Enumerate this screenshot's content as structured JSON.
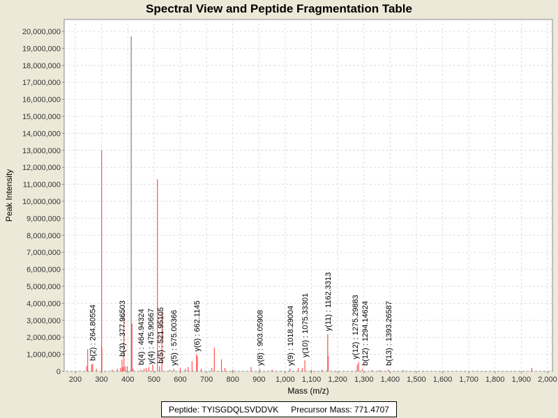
{
  "chart_data": {
    "type": "bar",
    "title": "Spectral View and Peptide Fragmentation Table",
    "xlabel": "Mass (m/z)",
    "ylabel": "Peak Intensity",
    "xlim": [
      150,
      2020
    ],
    "ylim": [
      0,
      20500000
    ],
    "xticks": [
      200,
      300,
      400,
      500,
      600,
      700,
      800,
      900,
      1000,
      1100,
      1200,
      1300,
      1400,
      1500,
      1600,
      1700,
      1800,
      1900,
      2000
    ],
    "yticks": [
      0,
      1000000,
      2000000,
      3000000,
      4000000,
      5000000,
      6000000,
      7000000,
      8000000,
      9000000,
      10000000,
      11000000,
      12000000,
      13000000,
      14000000,
      15000000,
      16000000,
      17000000,
      18000000,
      19000000,
      20000000
    ],
    "grid": true,
    "peaks": [
      [
        243,
        300000
      ],
      [
        247,
        1300000
      ],
      [
        262,
        400000
      ],
      [
        266,
        450000
      ],
      [
        280,
        150000
      ],
      [
        300,
        13000000
      ],
      [
        301,
        1400000
      ],
      [
        340,
        100000
      ],
      [
        360,
        150000
      ],
      [
        372,
        200000
      ],
      [
        378,
        700000
      ],
      [
        381,
        250000
      ],
      [
        385,
        3600000
      ],
      [
        390,
        300000
      ],
      [
        398,
        300000
      ],
      [
        416,
        2800000
      ],
      [
        420,
        150000
      ],
      [
        450,
        100000
      ],
      [
        462,
        150000
      ],
      [
        470,
        200000
      ],
      [
        480,
        250000
      ],
      [
        495,
        400000
      ],
      [
        513,
        11300000
      ],
      [
        521,
        300000
      ],
      [
        530,
        3600000
      ],
      [
        560,
        100000
      ],
      [
        575,
        150000
      ],
      [
        600,
        200000
      ],
      [
        620,
        150000
      ],
      [
        630,
        250000
      ],
      [
        645,
        600000
      ],
      [
        662,
        1000000
      ],
      [
        665,
        900000
      ],
      [
        680,
        150000
      ],
      [
        720,
        200000
      ],
      [
        730,
        1400000
      ],
      [
        757,
        700000
      ],
      [
        770,
        200000
      ],
      [
        800,
        100000
      ],
      [
        870,
        250000
      ],
      [
        903,
        150000
      ],
      [
        950,
        100000
      ],
      [
        1018,
        150000
      ],
      [
        1050,
        200000
      ],
      [
        1065,
        200000
      ],
      [
        1075,
        650000
      ],
      [
        1100,
        100000
      ],
      [
        1140,
        100000
      ],
      [
        1162,
        2200000
      ],
      [
        1164,
        900000
      ],
      [
        1275,
        400000
      ],
      [
        1280,
        550000
      ],
      [
        1294,
        150000
      ],
      [
        1330,
        80000
      ],
      [
        1360,
        80000
      ],
      [
        1393,
        100000
      ],
      [
        1450,
        80000
      ],
      [
        1940,
        200000
      ]
    ],
    "precursor_peak": [
      413,
      19700000
    ],
    "annotations": [
      {
        "mass": 264.80554,
        "label": "b(2) : 264.80554"
      },
      {
        "mass": 377.96503,
        "label": "b(3) : 377.96503"
      },
      {
        "mass": 464.94324,
        "label": "b(4) : 464.94324"
      },
      {
        "mass": 475.90667,
        "label": "y(4) : 475.90667"
      },
      {
        "mass": 521.95105,
        "label": "b(5) : 521.95105"
      },
      {
        "mass": 575.00366,
        "label": "y(5) : 575.00366"
      },
      {
        "mass": 662.1145,
        "label": "y(6) : 662.1145"
      },
      {
        "mass": 903.05908,
        "label": "y(8) : 903.05908"
      },
      {
        "mass": 1018.29004,
        "label": "y(9) : 1018.29004"
      },
      {
        "mass": 1075.33301,
        "label": "y(10) : 1075.33301"
      },
      {
        "mass": 1162.3313,
        "label": "y(11) : 1162.3313"
      },
      {
        "mass": 1275.29883,
        "label": "y(12) : 1275.29883"
      },
      {
        "mass": 1294.14624,
        "label": "b(12) : 1294.14624"
      },
      {
        "mass": 1393.26587,
        "label": "b(13) : 1393.26587"
      }
    ],
    "colors": {
      "peak": "#ff4040",
      "precursor": "#808080",
      "annotation": "#000000"
    }
  },
  "info": {
    "peptide": "Peptide: TYISGDQLSVDDVK",
    "precursor": "Precursor Mass: 771.4707"
  }
}
